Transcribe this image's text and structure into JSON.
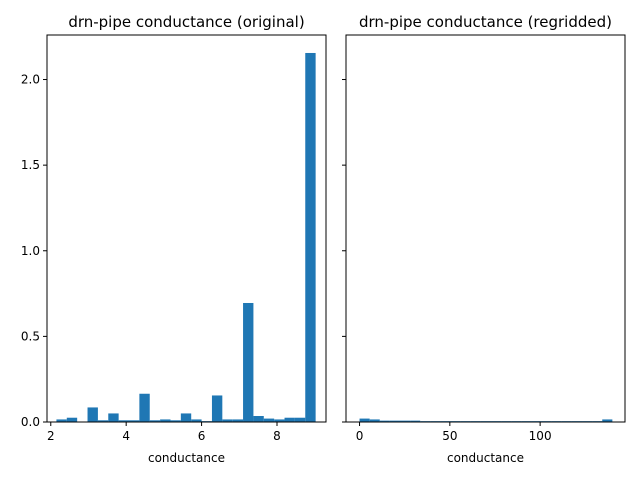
{
  "chart_data": [
    {
      "type": "bar",
      "title": "drn-pipe conductance (original)",
      "xlabel": "conductance",
      "ylabel": "",
      "xlim": [
        1.9,
        9.3
      ],
      "ylim": [
        0,
        2.26
      ],
      "xticks": [
        2,
        4,
        6,
        8
      ],
      "yticks": [
        0.0,
        0.5,
        1.0,
        1.5,
        2.0
      ],
      "ytick_labels": [
        "0.0",
        "0.5",
        "1.0",
        "1.5",
        "2.0"
      ],
      "bin_start": 2.15,
      "bin_width": 0.275,
      "values": [
        0.015,
        0.025,
        0.002,
        0.085,
        0.01,
        0.05,
        0.01,
        0.01,
        0.165,
        0.01,
        0.015,
        0.01,
        0.05,
        0.015,
        0.005,
        0.155,
        0.015,
        0.015,
        0.695,
        0.035,
        0.02,
        0.015,
        0.025,
        0.025,
        2.155
      ],
      "color": "#1f77b4",
      "grid": false
    },
    {
      "type": "bar",
      "title": "drn-pipe conductance (regridded)",
      "xlabel": "conductance",
      "ylabel": "",
      "xlim": [
        -7.5,
        147
      ],
      "ylim": [
        0,
        2.26
      ],
      "xticks": [
        0,
        50,
        100
      ],
      "yticks": [
        0.0,
        0.5,
        1.0,
        1.5,
        2.0
      ],
      "bin_start": 0,
      "bin_width": 5.6,
      "values": [
        0.02,
        0.015,
        0.008,
        0.008,
        0.008,
        0.008,
        0.005,
        0.005,
        0.005,
        0.005,
        0.005,
        0.005,
        0.005,
        0.005,
        0.005,
        0.005,
        0.005,
        0.005,
        0.005,
        0.005,
        0.005,
        0.005,
        0.005,
        0.005,
        0.015
      ],
      "color": "#1f77b4",
      "grid": false
    }
  ]
}
